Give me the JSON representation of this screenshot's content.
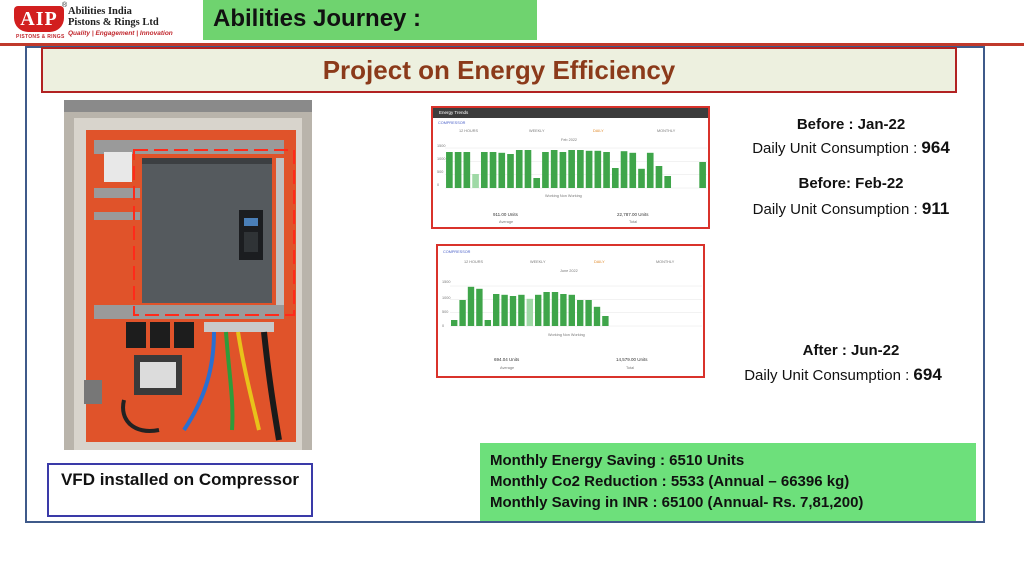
{
  "header": {
    "logo_letters": "AIP",
    "registered_mark": "®",
    "company_line1": "Abilities India",
    "company_line2": "Pistons & Rings Ltd",
    "tagline": "Quality | Engagement | Innovation",
    "logo_subtext": "PISTONS & RINGS",
    "section_title": "Abilities Journey :",
    "brand_color": "#c1272d",
    "accent_green": "#6fd36f"
  },
  "slide_title": "Project on Energy Efficiency",
  "photo": {
    "caption": "VFD installed on Compressor"
  },
  "screenshot_before": {
    "header": "Energy Trends",
    "subtitle": "COMPRESSOR",
    "tabs": [
      "12 HOURS",
      "WEEKLY",
      "DAILY",
      "MONTHLY"
    ],
    "period": "Feb 2022",
    "summary_left": "911.00 Units",
    "summary_left_label": "Average",
    "summary_right": "22,787.00 Units",
    "summary_right_label": "Total",
    "legend": "Working   Non Working",
    "bar_levels": [
      0.9,
      0.9,
      0.9,
      0.35,
      0.9,
      0.9,
      0.88,
      0.85,
      0.95,
      0.95,
      0.25,
      0.9,
      0.95,
      0.9,
      0.95,
      0.95,
      0.93,
      0.93,
      0.9,
      0.5,
      0.92,
      0.88,
      0.48,
      0.88,
      0.55,
      0.3,
      0,
      0,
      0,
      0.65
    ],
    "bar_light": [
      false,
      false,
      false,
      true,
      false,
      false,
      false,
      false,
      false,
      false,
      false,
      false,
      false,
      false,
      false,
      false,
      false,
      false,
      false,
      false,
      false,
      false,
      false,
      false,
      false,
      false,
      false,
      false,
      false,
      false
    ],
    "y_ticks": [
      "1500",
      "1000",
      "500",
      "0"
    ]
  },
  "screenshot_after": {
    "subtitle": "COMPRESSOR",
    "tabs": [
      "12 HOURS",
      "WEEKLY",
      "DAILY",
      "MONTHLY"
    ],
    "period": "June 2022",
    "summary_left": "694.04 Units",
    "summary_left_label": "Average",
    "summary_right": "14,579.00 Units",
    "summary_right_label": "Total",
    "legend": "Working   Non Working",
    "bar_levels": [
      0.15,
      0.65,
      0.98,
      0.93,
      0.15,
      0.8,
      0.78,
      0.75,
      0.78,
      0.68,
      0.78,
      0.85,
      0.85,
      0.8,
      0.78,
      0.65,
      0.65,
      0.48,
      0.25,
      0,
      0,
      0,
      0,
      0,
      0,
      0,
      0,
      0,
      0,
      0
    ],
    "bar_light": [
      false,
      false,
      false,
      false,
      false,
      false,
      false,
      false,
      false,
      true,
      false,
      false,
      false,
      false,
      false,
      false,
      false,
      false,
      false,
      false,
      false,
      false,
      false,
      false,
      false,
      false,
      false,
      false,
      false,
      false
    ],
    "y_ticks": [
      "1500",
      "1000",
      "500",
      "0"
    ]
  },
  "consumption": {
    "before1_label": "Before : Jan-22",
    "daily_label": "Daily Unit Consumption : ",
    "before1_value": "964",
    "before2_label": "Before: Feb-22",
    "before2_value": "911",
    "after_label": "After : Jun-22",
    "after_value": "694"
  },
  "savings": {
    "line1": "Monthly Energy Saving : 6510 Units",
    "line2": "Monthly Co2 Reduction : 5533 (Annual – 66396 kg)",
    "line3": "Monthly Saving in INR : 65100 (Annual- Rs. 7,81,200)"
  }
}
